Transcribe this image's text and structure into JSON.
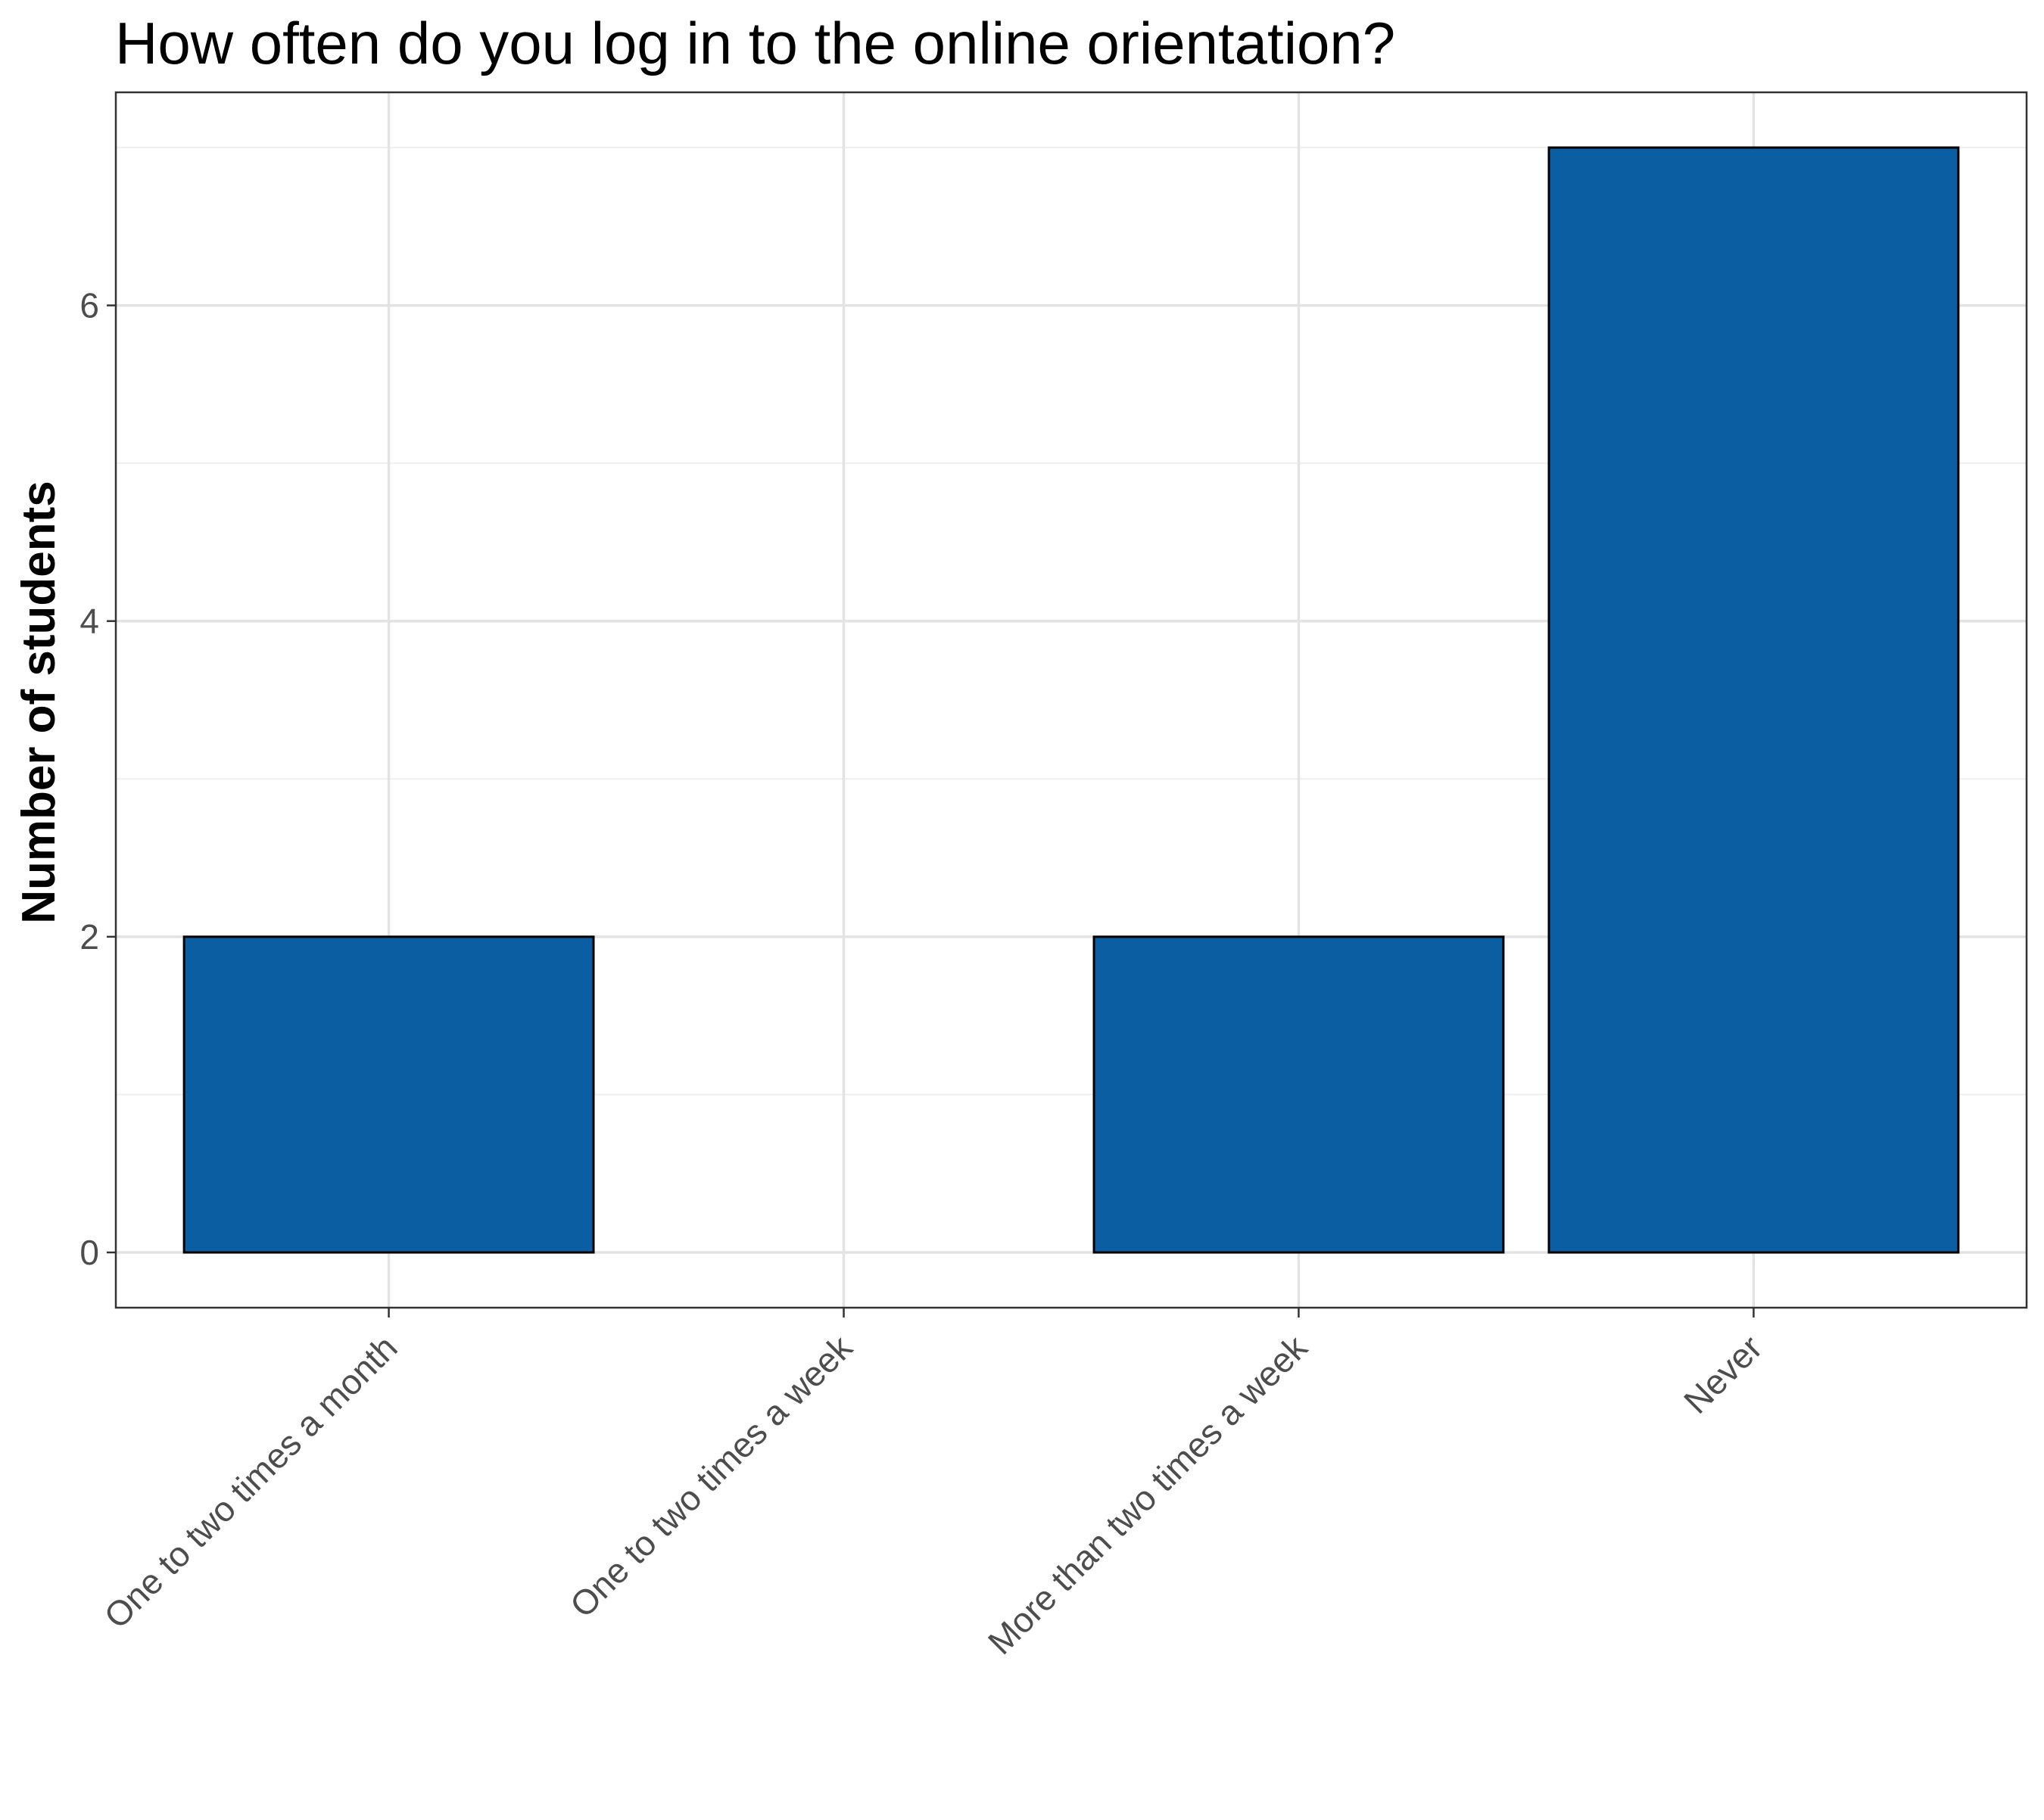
{
  "chart_data": {
    "type": "bar",
    "title": "How often do you log in to the online orientation?",
    "xlabel": "",
    "ylabel": "Number of students",
    "categories": [
      "One to two times a month",
      "One to two times a week",
      "More than two times a week",
      "Never"
    ],
    "values": [
      2,
      0,
      2,
      7
    ],
    "ylim": [
      -0.35,
      7.35
    ],
    "y_ticks_major": [
      0,
      2,
      4,
      6
    ],
    "y_ticks_minor": [
      1,
      3,
      5,
      7
    ],
    "grid": true,
    "legend": "none",
    "colors": {
      "bar_fill": "#0B5EA1",
      "bar_stroke": "#000000",
      "grid_major": "#E3E3E3",
      "grid_minor": "#EFEFEF",
      "panel_border": "#333333",
      "tick_label": "#4D4D4D",
      "title": "#000000",
      "axis_title": "#000000"
    }
  }
}
